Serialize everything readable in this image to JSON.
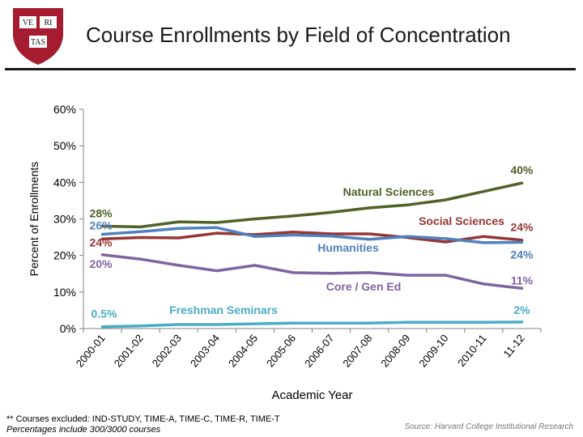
{
  "slide": {
    "title": "Course Enrollments by Field of Concentration",
    "footnote_line1": "** Courses excluded: IND-STUDY, TIME-A, TIME-C, TIME-R,  TIME-T",
    "footnote_line2": "Percentages include 300/3000 courses",
    "source": "Source:  Harvard College Institutional Research"
  },
  "logo": {
    "shield_color": "#a51c30",
    "book_left": "VE",
    "book_right": "RI",
    "book_bottom": "TAS"
  },
  "chart_data": {
    "type": "line",
    "title": "",
    "xlabel": "Academic Year",
    "ylabel": "Percent of Enrollments",
    "ylim": [
      0,
      60
    ],
    "yticks": [
      0,
      10,
      20,
      30,
      40,
      50,
      60
    ],
    "ytick_labels": [
      "0%",
      "10%",
      "20%",
      "30%",
      "40%",
      "50%",
      "60%"
    ],
    "grid": false,
    "categories": [
      "2000-01",
      "2001-02",
      "2002-03",
      "2003-04",
      "2004-05",
      "2005-06",
      "2006-07",
      "2007-08",
      "2008-09",
      "2009-10",
      "2010-11",
      "11-12"
    ],
    "series": [
      {
        "name": "Natural Sciences",
        "color": "#4f6228",
        "values": [
          28,
          27.8,
          29.2,
          29,
          30,
          30.8,
          31.8,
          33,
          33.8,
          35.2,
          37.5,
          39.8
        ],
        "start_label": "28%",
        "end_label": "40%"
      },
      {
        "name": "Social Sciences",
        "color": "#953735",
        "values": [
          24.5,
          24.9,
          24.8,
          26.1,
          25.7,
          26.4,
          25.9,
          25.9,
          24.9,
          23.7,
          25.2,
          24.2
        ],
        "start_label": "24%",
        "end_label": "24%"
      },
      {
        "name": "Humanities",
        "color": "#4f81bd",
        "values": [
          25.8,
          26.5,
          27.4,
          27.6,
          25.2,
          25.6,
          25.3,
          24.4,
          25.2,
          24.6,
          23.5,
          23.6
        ],
        "start_label": "26%",
        "end_label": "24%"
      },
      {
        "name": "Core / Gen Ed",
        "color": "#8064a2",
        "values": [
          20.2,
          19,
          17.3,
          15.8,
          17.3,
          15.3,
          15.1,
          15.3,
          14.6,
          14.6,
          12.2,
          11
        ],
        "start_label": "20%",
        "end_label": "11%"
      },
      {
        "name": "Freshman Seminars",
        "color": "#4bacc6",
        "values": [
          0.5,
          0.7,
          1.1,
          1.1,
          1.3,
          1.5,
          1.5,
          1.5,
          1.7,
          1.7,
          1.7,
          1.8
        ],
        "start_label": "0.5%",
        "end_label": "2%"
      }
    ]
  }
}
